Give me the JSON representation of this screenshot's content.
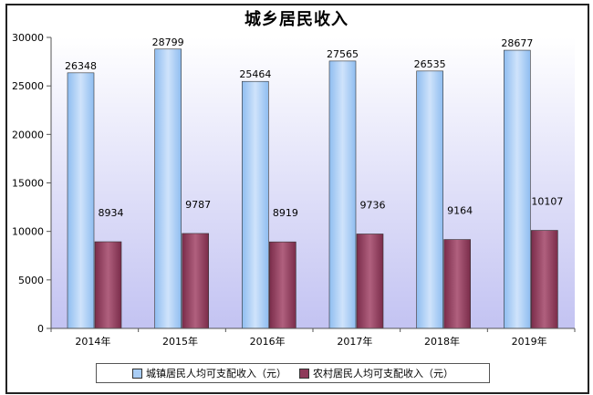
{
  "chart_data": {
    "type": "bar",
    "title": "城乡居民收入",
    "categories": [
      "2014年",
      "2015年",
      "2016年",
      "2017年",
      "2018年",
      "2019年"
    ],
    "series": [
      {
        "name": "城镇居民人均可支配收入（元）",
        "values": [
          26348,
          28799,
          25464,
          27565,
          26535,
          28677
        ],
        "color": "#a9cdf5",
        "data_labels": [
          "26348",
          "28799",
          "25464",
          "27565",
          "26535",
          "28677"
        ]
      },
      {
        "name": "农村居民人均可支配收入（元）",
        "values": [
          8934,
          9787,
          8919,
          9736,
          9164,
          10107
        ],
        "color": "#8e3a5a",
        "data_labels": [
          "8934",
          "9787",
          "8919",
          "9736",
          "9164",
          "10107"
        ]
      }
    ],
    "ylim": [
      0,
      30000
    ],
    "yticks": [
      0,
      5000,
      10000,
      15000,
      20000,
      25000,
      30000
    ],
    "ytick_labels": [
      "0",
      "5000",
      "10000",
      "15000",
      "20000",
      "25000",
      "30000"
    ],
    "xlabel": "",
    "ylabel": "",
    "grid": false,
    "legend": "bottom",
    "plot_background": "gradient"
  }
}
